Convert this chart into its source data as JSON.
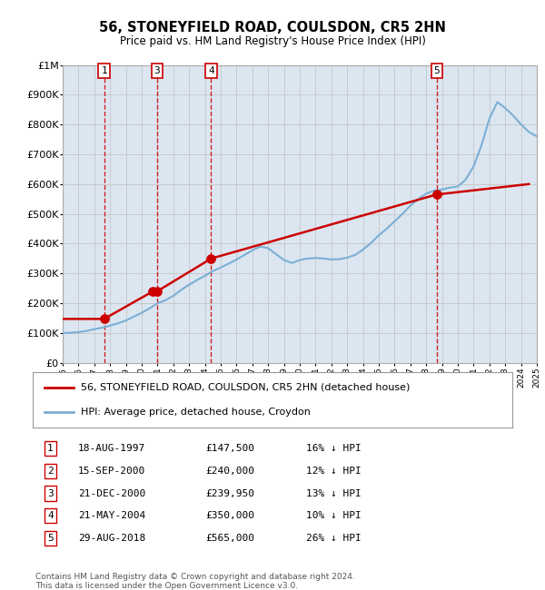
{
  "title": "56, STONEYFIELD ROAD, COULSDON, CR5 2HN",
  "subtitle": "Price paid vs. HM Land Registry's House Price Index (HPI)",
  "sales": [
    {
      "num": 1,
      "date": "18-AUG-1997",
      "year": 1997.62,
      "price": 147500
    },
    {
      "num": 2,
      "date": "15-SEP-2000",
      "year": 2000.71,
      "price": 240000
    },
    {
      "num": 3,
      "date": "21-DEC-2000",
      "year": 2000.97,
      "price": 239950
    },
    {
      "num": 4,
      "date": "21-MAY-2004",
      "year": 2004.39,
      "price": 350000
    },
    {
      "num": 5,
      "date": "29-AUG-2018",
      "year": 2018.66,
      "price": 565000
    }
  ],
  "legend_label_red": "56, STONEYFIELD ROAD, COULSDON, CR5 2HN (detached house)",
  "legend_label_blue": "HPI: Average price, detached house, Croydon",
  "footer": "Contains HM Land Registry data © Crown copyright and database right 2024.\nThis data is licensed under the Open Government Licence v3.0.",
  "xmin": 1995,
  "xmax": 2025,
  "ymin": 0,
  "ymax": 1000000,
  "red_color": "#cc0000",
  "blue_color": "#7bafd4",
  "bg_color": "#dce6f1",
  "plot_bg": "#ffffff",
  "grid_color": "#c0c0c0",
  "hpi_years": [
    1995,
    1995.5,
    1996,
    1996.5,
    1997,
    1997.5,
    1998,
    1998.5,
    1999,
    1999.5,
    2000,
    2000.5,
    2001,
    2001.5,
    2002,
    2002.5,
    2003,
    2003.5,
    2004,
    2004.5,
    2005,
    2005.5,
    2006,
    2006.5,
    2007,
    2007.5,
    2008,
    2008.5,
    2009,
    2009.5,
    2010,
    2010.5,
    2011,
    2011.5,
    2012,
    2012.5,
    2013,
    2013.5,
    2014,
    2014.5,
    2015,
    2015.5,
    2016,
    2016.5,
    2017,
    2017.5,
    2018,
    2018.5,
    2019,
    2019.5,
    2020,
    2020.5,
    2021,
    2021.5,
    2022,
    2022.5,
    2023,
    2023.5,
    2024,
    2024.5,
    2025
  ],
  "hpi_values": [
    100000,
    101000,
    103000,
    107000,
    113000,
    118000,
    125000,
    133000,
    142000,
    155000,
    168000,
    183000,
    200000,
    210000,
    225000,
    245000,
    262000,
    278000,
    292000,
    308000,
    320000,
    333000,
    347000,
    362000,
    378000,
    390000,
    385000,
    365000,
    345000,
    335000,
    345000,
    350000,
    352000,
    350000,
    347000,
    348000,
    353000,
    362000,
    380000,
    402000,
    428000,
    450000,
    475000,
    500000,
    528000,
    550000,
    568000,
    578000,
    582000,
    588000,
    592000,
    615000,
    660000,
    730000,
    820000,
    875000,
    855000,
    830000,
    800000,
    775000,
    760000
  ],
  "table_rows": [
    [
      "1",
      "18-AUG-1997",
      "£147,500",
      "16% ↓ HPI"
    ],
    [
      "2",
      "15-SEP-2000",
      "£240,000",
      "12% ↓ HPI"
    ],
    [
      "3",
      "21-DEC-2000",
      "£239,950",
      "13% ↓ HPI"
    ],
    [
      "4",
      "21-MAY-2004",
      "£350,000",
      "10% ↓ HPI"
    ],
    [
      "5",
      "29-AUG-2018",
      "£565,000",
      "26% ↓ HPI"
    ]
  ],
  "show_labels": [
    1,
    3,
    4,
    5
  ]
}
